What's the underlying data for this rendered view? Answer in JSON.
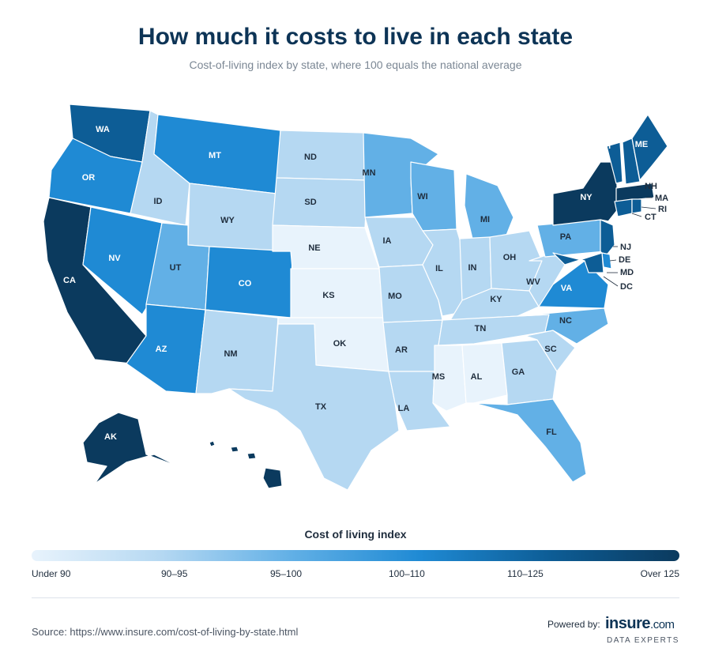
{
  "title": "How much it costs to live in each state",
  "subtitle": "Cost-of-living index by state, where 100 equals the national average",
  "legend": {
    "title": "Cost of living index",
    "labels": [
      "Under 90",
      "90–95",
      "95–100",
      "100–110",
      "110–125",
      "Over 125"
    ]
  },
  "colors": {
    "under_90": "#e8f3fc",
    "90_95": "#b5d8f2",
    "95_100": "#62b0e6",
    "100_110": "#1f8ad4",
    "110_125": "#0d5d96",
    "over_125": "#0b3a5e"
  },
  "states": {
    "WA": "110–125",
    "OR": "100–110",
    "CA": "Over 125",
    "NV": "100–110",
    "ID": "90–95",
    "MT": "100–110",
    "WY": "90–95",
    "UT": "95–100",
    "AZ": "100–110",
    "CO": "100–110",
    "NM": "90–95",
    "ND": "90–95",
    "SD": "90–95",
    "NE": "Under 90",
    "KS": "Under 90",
    "OK": "Under 90",
    "TX": "90–95",
    "MN": "95–100",
    "IA": "90–95",
    "MO": "90–95",
    "AR": "90–95",
    "LA": "90–95",
    "WI": "95–100",
    "IL": "90–95",
    "MI": "95–100",
    "IN": "90–95",
    "OH": "90–95",
    "KY": "90–95",
    "TN": "90–95",
    "MS": "Under 90",
    "AL": "Under 90",
    "GA": "90–95",
    "FL": "95–100",
    "SC": "90–95",
    "NC": "95–100",
    "VA": "100–110",
    "WV": "90–95",
    "PA": "95–100",
    "NY": "Over 125",
    "VT": "110–125",
    "NH": "110–125",
    "ME": "110–125",
    "MA": "Over 125",
    "RI": "110–125",
    "CT": "110–125",
    "NJ": "110–125",
    "DE": "100–110",
    "MD": "110–125",
    "DC": "Over 125",
    "AK": "Over 125",
    "HI": "Over 125"
  },
  "source": "Source: https://www.insure.com/cost-of-living-by-state.html",
  "powered_by": "Powered by:",
  "logo": {
    "name": "insure",
    "suffix": ".com",
    "tagline": "DATA EXPERTS"
  }
}
